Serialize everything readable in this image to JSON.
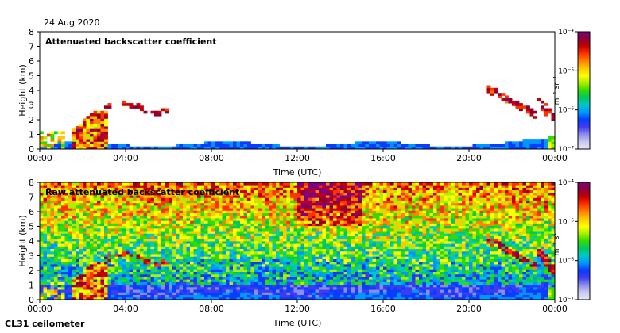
{
  "date_label": "24 Aug 2020",
  "footer_label": "CL31 ceilometer",
  "colors": {
    "scale": [
      "#e6e6f5",
      "#c8c8ee",
      "#8c8cf0",
      "#3c3cf0",
      "#0a3cff",
      "#0096ff",
      "#00c8c8",
      "#00c864",
      "#32dc00",
      "#aaf000",
      "#ffff00",
      "#ffc800",
      "#ff8200",
      "#ff3200",
      "#c80000",
      "#8c0037",
      "#800080"
    ]
  },
  "chart_data": [
    {
      "type": "heatmap",
      "title": "Attenuated backscatter coefficient",
      "xlabel": "Time (UTC)",
      "ylabel": "Height (km)",
      "xlim": [
        0,
        24
      ],
      "ylim": [
        0,
        8
      ],
      "x_ticks": [
        "00:00",
        "04:00",
        "08:00",
        "12:00",
        "16:00",
        "20:00",
        "00:00"
      ],
      "y_ticks": [
        "0",
        "1",
        "2",
        "3",
        "4",
        "5",
        "6",
        "7",
        "8"
      ],
      "colorbar": {
        "label": "m⁻¹ sr⁻¹",
        "log_scale": true,
        "range": [
          1e-07,
          0.0001
        ],
        "ticks": [
          "10⁻⁷",
          "10⁻⁶",
          "10⁻⁵",
          "10⁻⁴"
        ]
      }
    },
    {
      "type": "heatmap",
      "title": "Raw attenuated backscatter coefficient",
      "xlabel": "Time (UTC)",
      "ylabel": "Height (km)",
      "xlim": [
        0,
        24
      ],
      "ylim": [
        0,
        8
      ],
      "x_ticks": [
        "00:00",
        "04:00",
        "08:00",
        "12:00",
        "16:00",
        "20:00",
        "00:00"
      ],
      "y_ticks": [
        "0",
        "1",
        "2",
        "3",
        "4",
        "5",
        "6",
        "7",
        "8"
      ],
      "colorbar": {
        "label": "m⁻¹ sr⁻¹",
        "log_scale": true,
        "range": [
          1e-07,
          0.0001
        ],
        "ticks": [
          "10⁻⁷",
          "10⁻⁶",
          "10⁻⁵",
          "10⁻⁴"
        ]
      }
    }
  ]
}
